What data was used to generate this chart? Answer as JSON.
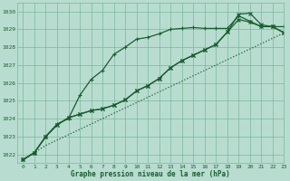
{
  "xlabel": "Graphe pression niveau de la mer (hPa)",
  "background_color": "#b8ddd0",
  "grid_color": "#78b89a",
  "line_color": "#1a5c30",
  "ylim": [
    1021.5,
    1030.5
  ],
  "xlim": [
    -0.5,
    23
  ],
  "yticks": [
    1022,
    1023,
    1024,
    1025,
    1026,
    1027,
    1028,
    1029,
    1030
  ],
  "xticks": [
    0,
    1,
    2,
    3,
    4,
    5,
    6,
    7,
    8,
    9,
    10,
    11,
    12,
    13,
    14,
    15,
    16,
    17,
    18,
    19,
    20,
    21,
    22,
    23
  ],
  "series": [
    {
      "y": [
        1021.7,
        1022.1,
        1023.0,
        1023.7,
        1024.0,
        1025.3,
        1026.2,
        1026.7,
        1027.6,
        1028.0,
        1028.45,
        1028.55,
        1028.75,
        1029.0,
        1029.05,
        1029.1,
        1029.05,
        1029.05,
        1029.05,
        1029.75,
        1029.45,
        1029.15,
        1029.15,
        1029.15
      ],
      "marker": "+",
      "markersize": 3.5,
      "lw": 0.9,
      "ls": "-"
    },
    {
      "y": [
        1021.7,
        1022.1,
        1023.0,
        1023.65,
        1024.05,
        1024.25,
        1024.45,
        1024.55,
        1024.75,
        1025.05,
        1025.55,
        1025.85,
        1026.25,
        1026.85,
        1027.25,
        1027.55,
        1027.85,
        1028.15,
        1028.85,
        1029.55,
        1029.4,
        1029.15,
        1029.15,
        1028.8
      ],
      "marker": "x",
      "markersize": 3.0,
      "lw": 0.9,
      "ls": "-"
    },
    {
      "y": [
        1021.7,
        1022.1,
        1023.0,
        1023.65,
        1024.05,
        1024.25,
        1024.45,
        1024.55,
        1024.75,
        1025.05,
        1025.55,
        1025.85,
        1026.25,
        1026.85,
        1027.25,
        1027.55,
        1027.85,
        1028.15,
        1028.85,
        1029.85,
        1029.9,
        1029.25,
        1029.15,
        1028.8
      ],
      "marker": "x",
      "markersize": 3.0,
      "lw": 0.9,
      "ls": "-"
    },
    {
      "y": [
        1021.7,
        1022.1,
        1022.5,
        1022.8,
        1023.1,
        1023.4,
        1023.7,
        1024.0,
        1024.3,
        1024.6,
        1024.9,
        1025.2,
        1025.5,
        1025.8,
        1026.1,
        1026.4,
        1026.7,
        1027.0,
        1027.3,
        1027.6,
        1027.9,
        1028.2,
        1028.5,
        1028.8
      ],
      "marker": null,
      "markersize": 0,
      "lw": 0.9,
      "ls": ":"
    }
  ]
}
